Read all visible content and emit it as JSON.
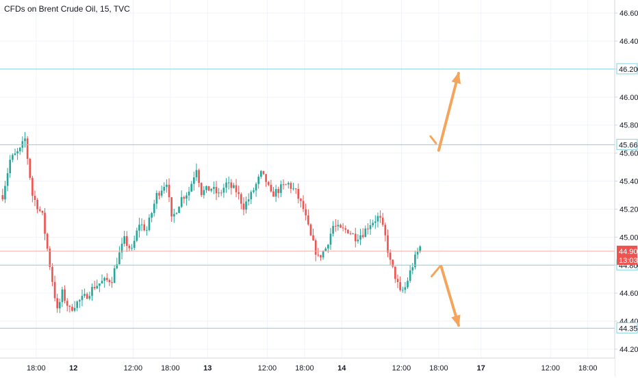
{
  "chart_data": {
    "type": "candlestick",
    "title": "CFDs on Brent Crude Oil, 15, TVC",
    "ylim": [
      44.1,
      46.72
    ],
    "y_ticks": [
      44.2,
      44.4,
      44.6,
      44.8,
      45.0,
      45.2,
      45.4,
      45.6,
      45.8,
      46.0,
      46.2,
      46.4,
      46.6
    ],
    "y_tick_labels": [
      "44.20",
      "44.40",
      "44.60",
      "44.80",
      "45.00",
      "45.20",
      "45.40",
      "45.60",
      "45.80",
      "46.00",
      "46.20",
      "46.40",
      "46.60"
    ],
    "x_ticks": [
      {
        "label": "18:00",
        "bar": 14
      },
      {
        "label": "12",
        "bar": 29,
        "bold": true
      },
      {
        "label": "12:00",
        "bar": 53
      },
      {
        "label": "18:00",
        "bar": 68
      },
      {
        "label": "13",
        "bar": 83,
        "bold": true
      },
      {
        "label": "12:00",
        "bar": 107
      },
      {
        "label": "18:00",
        "bar": 122
      },
      {
        "label": "14",
        "bar": 137,
        "bold": true
      },
      {
        "label": "12:00",
        "bar": 161
      },
      {
        "label": "18:00",
        "bar": 176
      },
      {
        "label": "17",
        "bar": 193,
        "bold": true
      },
      {
        "label": "12:00",
        "bar": 221
      },
      {
        "label": "18:00",
        "bar": 236
      }
    ],
    "horizontal_levels": [
      {
        "value": 46.2,
        "label": "46.20"
      },
      {
        "value": 45.66,
        "label": "45.66"
      },
      {
        "value": 44.8,
        "label": "44.80"
      },
      {
        "value": 44.35,
        "label": "44.35"
      }
    ],
    "current_price": {
      "value": 44.9,
      "label": "44.90",
      "countdown": "13:03"
    },
    "arrows": [
      {
        "direction": "up",
        "from": {
          "bar": 176,
          "price": 45.62
        },
        "to": {
          "bar": 184,
          "price": 46.17
        }
      },
      {
        "direction": "down",
        "from": {
          "bar": 177,
          "price": 44.79
        },
        "to": {
          "bar": 184,
          "price": 44.37
        }
      }
    ],
    "waypoints": [
      [
        0,
        45.3
      ],
      [
        3,
        45.55
      ],
      [
        7,
        45.62
      ],
      [
        9,
        45.7
      ],
      [
        12,
        45.3
      ],
      [
        16,
        45.15
      ],
      [
        19,
        44.8
      ],
      [
        22,
        44.47
      ],
      [
        24,
        44.6
      ],
      [
        27,
        44.48
      ],
      [
        29,
        44.52
      ],
      [
        33,
        44.57
      ],
      [
        37,
        44.65
      ],
      [
        40,
        44.68
      ],
      [
        44,
        44.7
      ],
      [
        46,
        44.83
      ],
      [
        49,
        44.98
      ],
      [
        52,
        44.9
      ],
      [
        55,
        45.1
      ],
      [
        58,
        45.05
      ],
      [
        62,
        45.3
      ],
      [
        66,
        45.4
      ],
      [
        68,
        45.12
      ],
      [
        72,
        45.28
      ],
      [
        75,
        45.33
      ],
      [
        78,
        45.5
      ],
      [
        80,
        45.32
      ],
      [
        84,
        45.35
      ],
      [
        87,
        45.3
      ],
      [
        90,
        45.38
      ],
      [
        94,
        45.33
      ],
      [
        97,
        45.22
      ],
      [
        100,
        45.3
      ],
      [
        104,
        45.45
      ],
      [
        106,
        45.4
      ],
      [
        108,
        45.3
      ],
      [
        112,
        45.35
      ],
      [
        115,
        45.38
      ],
      [
        118,
        45.32
      ],
      [
        121,
        45.2
      ],
      [
        124,
        45.0
      ],
      [
        127,
        44.85
      ],
      [
        130,
        44.92
      ],
      [
        133,
        45.08
      ],
      [
        136,
        45.05
      ],
      [
        139,
        45.05
      ],
      [
        142,
        45.0
      ],
      [
        145,
        45.03
      ],
      [
        148,
        45.1
      ],
      [
        151,
        45.14
      ],
      [
        152,
        45.12
      ],
      [
        154,
        45.0
      ],
      [
        156,
        44.82
      ],
      [
        158,
        44.72
      ],
      [
        160,
        44.6
      ],
      [
        162,
        44.64
      ],
      [
        164,
        44.75
      ],
      [
        166,
        44.85
      ],
      [
        168,
        44.93
      ]
    ]
  }
}
